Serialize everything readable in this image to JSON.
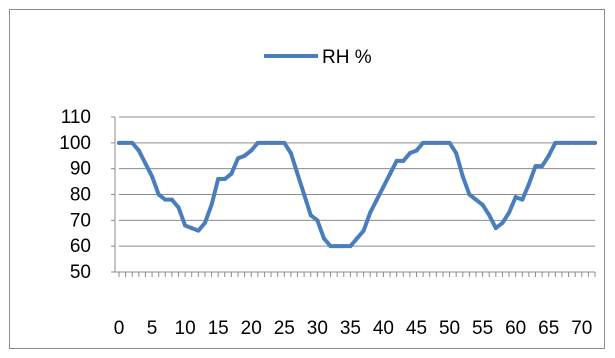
{
  "chart_data": {
    "type": "line",
    "title": "",
    "xlabel": "",
    "ylabel": "",
    "legend_position": "top",
    "grid": true,
    "ylim": [
      50,
      110
    ],
    "yticks": [
      50,
      60,
      70,
      80,
      90,
      100,
      110
    ],
    "xlim": [
      0,
      72
    ],
    "xticks": [
      0,
      5,
      10,
      15,
      20,
      25,
      30,
      35,
      40,
      45,
      50,
      55,
      60,
      65,
      70
    ],
    "colors": {
      "series": "#4a7ebb",
      "grid": "#8c8c8c",
      "axis": "#8c8c8c",
      "text": "#000000"
    },
    "series": [
      {
        "name": "RH %",
        "x": [
          0,
          1,
          2,
          3,
          4,
          5,
          6,
          7,
          8,
          9,
          10,
          11,
          12,
          13,
          14,
          15,
          16,
          17,
          18,
          19,
          20,
          21,
          22,
          23,
          24,
          25,
          26,
          27,
          28,
          29,
          30,
          31,
          32,
          33,
          34,
          35,
          36,
          37,
          38,
          39,
          40,
          41,
          42,
          43,
          44,
          45,
          46,
          47,
          48,
          49,
          50,
          51,
          52,
          53,
          54,
          55,
          56,
          57,
          58,
          59,
          60,
          61,
          62,
          63,
          64,
          65,
          66,
          67,
          68,
          69,
          70,
          71,
          72
        ],
        "values": [
          100,
          100,
          100,
          97,
          92,
          87,
          80,
          78,
          78,
          75,
          68,
          67,
          66,
          69,
          76,
          86,
          86,
          88,
          94,
          95,
          97,
          100,
          100,
          100,
          100,
          100,
          96,
          88,
          80,
          72,
          70,
          63,
          60,
          60,
          60,
          60,
          63,
          66,
          73,
          78,
          83,
          88,
          93,
          93,
          96,
          97,
          100,
          100,
          100,
          100,
          100,
          96,
          87,
          80,
          78,
          76,
          72,
          67,
          69,
          73,
          79,
          78,
          84,
          91,
          91,
          95,
          100,
          100,
          100,
          100,
          100,
          100,
          100
        ]
      }
    ]
  }
}
